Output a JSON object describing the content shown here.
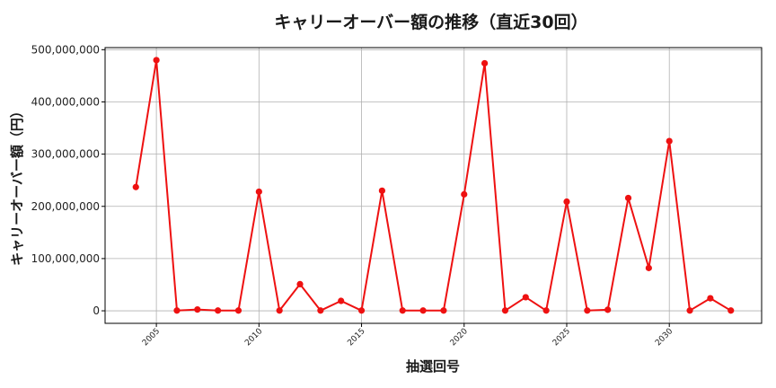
{
  "chart_data": {
    "type": "line",
    "title": "キャリーオーバー額の推移（直近30回）",
    "xlabel": "抽選回号",
    "ylabel": "キャリーオーバー額（円）",
    "x_ticks": [
      2005,
      2010,
      2015,
      2020,
      2025,
      2030
    ],
    "y_ticks": [
      0,
      100000000,
      200000000,
      300000000,
      400000000,
      500000000
    ],
    "y_tick_labels": [
      "0",
      "100,000,000",
      "200,000,000",
      "300,000,000",
      "400,000,000",
      "500,000,000"
    ],
    "xlim": [
      2002.5,
      2034.5
    ],
    "ylim": [
      -24000000,
      504000000
    ],
    "grid": true,
    "series": [
      {
        "color": "#ee1111",
        "x": [
          2004,
          2005,
          2006,
          2007,
          2008,
          2009,
          2010,
          2011,
          2012,
          2013,
          2014,
          2015,
          2016,
          2017,
          2018,
          2019,
          2020,
          2021,
          2022,
          2023,
          2024,
          2025,
          2026,
          2027,
          2028,
          2029,
          2030,
          2031,
          2032,
          2033
        ],
        "y": [
          237000000,
          480000000,
          500000,
          2500000,
          500000,
          500000,
          228000000,
          500000,
          51000000,
          500000,
          19000000,
          500000,
          230000000,
          500000,
          500000,
          500000,
          223000000,
          474000000,
          500000,
          26000000,
          500000,
          209000000,
          500000,
          2000000,
          216000000,
          82000000,
          325000000,
          500000,
          24000000,
          500000
        ]
      }
    ]
  }
}
